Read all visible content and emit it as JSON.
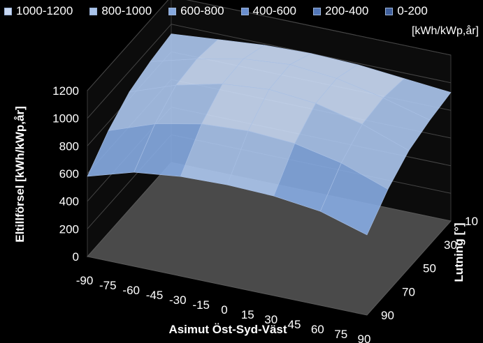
{
  "chart_data": {
    "type": "surface3d",
    "legend": {
      "placement": "top",
      "unit_note": "[kWh/kWp,år]",
      "entries": [
        {
          "label": "1000-1200",
          "color": "#c8d8f2"
        },
        {
          "label": "800-1000",
          "color": "#a9c3ea"
        },
        {
          "label": "600-800",
          "color": "#86a9df"
        },
        {
          "label": "400-600",
          "color": "#6a8fcf"
        },
        {
          "label": "200-400",
          "color": "#5277b8"
        },
        {
          "label": "0-200",
          "color": "#3f5f9c"
        }
      ]
    },
    "ylabel": "Eltillförsel [kWh/kWp,år]",
    "xlabel": "Asimut Öst-Syd-Väst",
    "zlabel": "Lutning [°]",
    "yticks": [
      0,
      200,
      400,
      600,
      800,
      1000,
      1200
    ],
    "ylim": [
      0,
      1200
    ],
    "azimuth_ticks": [
      -90,
      -75,
      -60,
      -45,
      -30,
      -15,
      0,
      15,
      30,
      45,
      60,
      75,
      90
    ],
    "tilt_ticks": [
      10,
      30,
      50,
      70,
      90
    ],
    "azimuth": [
      -90,
      -60,
      -30,
      0,
      30,
      60,
      90
    ],
    "tilt": [
      10,
      30,
      50,
      70,
      90
    ],
    "values": [
      [
        930,
        960,
        990,
        1000,
        990,
        960,
        930
      ],
      [
        900,
        990,
        1060,
        1090,
        1060,
        990,
        900
      ],
      [
        850,
        970,
        1050,
        1080,
        1050,
        970,
        850
      ],
      [
        740,
        860,
        930,
        950,
        930,
        860,
        740
      ],
      [
        580,
        680,
        720,
        730,
        720,
        680,
        580
      ]
    ]
  }
}
